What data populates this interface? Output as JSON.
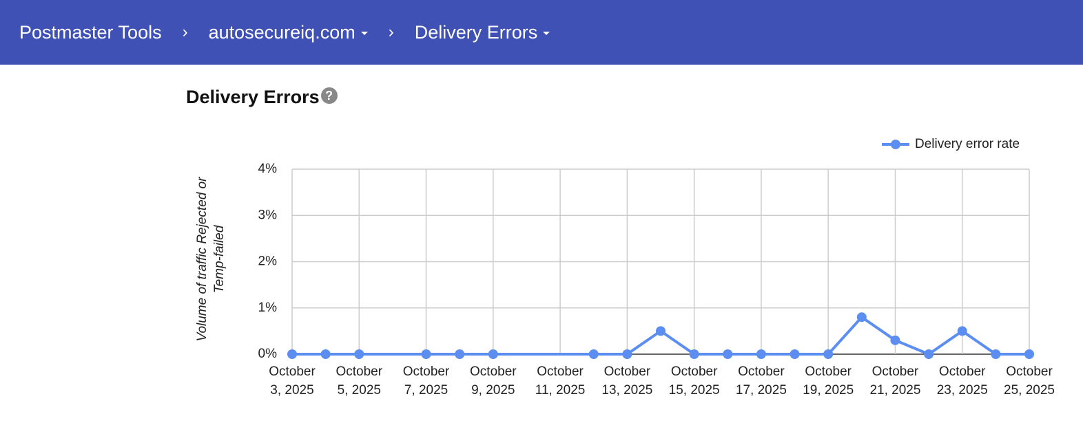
{
  "header": {
    "breadcrumbs": [
      "Postmaster Tools",
      "autosecureiq.com",
      "Delivery Errors"
    ]
  },
  "chart_data": {
    "type": "line",
    "title": "Delivery Errors",
    "y_label": "Volume of traffic Rejected or Temp-failed",
    "x": [
      "2025-10-03",
      "2025-10-04",
      "2025-10-05",
      "2025-10-07",
      "2025-10-08",
      "2025-10-09",
      "2025-10-12",
      "2025-10-13",
      "2025-10-14",
      "2025-10-15",
      "2025-10-16",
      "2025-10-17",
      "2025-10-18",
      "2025-10-19",
      "2025-10-20",
      "2025-10-21",
      "2025-10-22",
      "2025-10-23",
      "2025-10-24",
      "2025-10-25"
    ],
    "series": [
      {
        "name": "Delivery error rate",
        "color": "#5b8ef0",
        "values": [
          0,
          0,
          0,
          0,
          0,
          0,
          0,
          0,
          0.5,
          0,
          0,
          0,
          0,
          0,
          0.8,
          0.3,
          0,
          0.5,
          0,
          0
        ]
      }
    ],
    "xlim": [
      "2025-10-03",
      "2025-10-25"
    ],
    "xticks": [
      {
        "value": "2025-10-03",
        "label": "October 3, 2025"
      },
      {
        "value": "2025-10-05",
        "label": "October 5, 2025"
      },
      {
        "value": "2025-10-07",
        "label": "October 7, 2025"
      },
      {
        "value": "2025-10-09",
        "label": "October 9, 2025"
      },
      {
        "value": "2025-10-11",
        "label": "October 11, 2025"
      },
      {
        "value": "2025-10-13",
        "label": "October 13, 2025"
      },
      {
        "value": "2025-10-15",
        "label": "October 15, 2025"
      },
      {
        "value": "2025-10-17",
        "label": "October 17, 2025"
      },
      {
        "value": "2025-10-19",
        "label": "October 19, 2025"
      },
      {
        "value": "2025-10-21",
        "label": "October 21, 2025"
      },
      {
        "value": "2025-10-23",
        "label": "October 23, 2025"
      },
      {
        "value": "2025-10-25",
        "label": "October 25, 2025"
      }
    ],
    "ylim": [
      0,
      4
    ],
    "yticks": [
      {
        "value": 0,
        "label": "0%"
      },
      {
        "value": 1,
        "label": "1%"
      },
      {
        "value": 2,
        "label": "2%"
      },
      {
        "value": 3,
        "label": "3%"
      },
      {
        "value": 4,
        "label": "4%"
      }
    ],
    "grid": true,
    "legend": "top-right"
  }
}
